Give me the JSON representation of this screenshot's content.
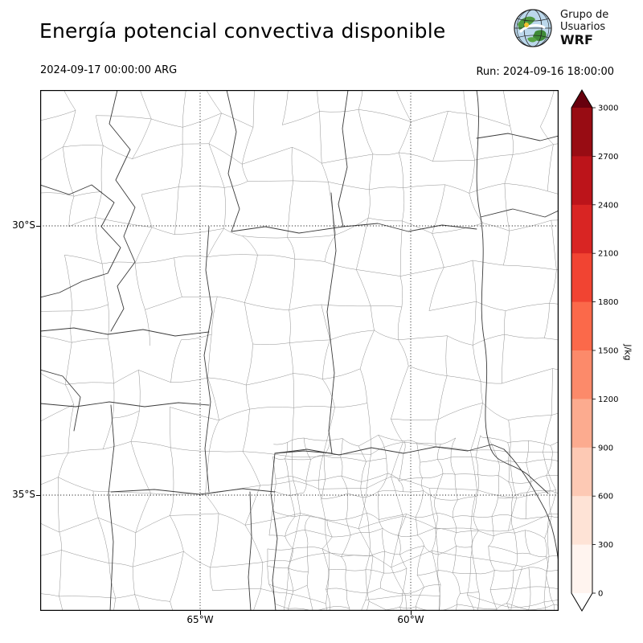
{
  "header": {
    "title": "Energía potencial convectiva disponible",
    "valid_time": "2024-09-17 00:00:00 ARG",
    "run_label": "Run: 2024-09-16 18:00:00"
  },
  "logo": {
    "line1": "Grupo de",
    "line2": "Usuarios",
    "line3": "WRF"
  },
  "axes": {
    "lat_tick_labels": [
      "30°S",
      "35°S"
    ],
    "lon_tick_labels": [
      "65°W",
      "60°W"
    ]
  },
  "colorbar": {
    "label": "J/kg",
    "tick_labels": [
      "3000",
      "2700",
      "2400",
      "2100",
      "1800",
      "1500",
      "1200",
      "900",
      "600",
      "300",
      "0"
    ],
    "segment_colors_top_to_bottom": [
      "#980c13",
      "#bc141a",
      "#d92523",
      "#f14432",
      "#fb694a",
      "#fc8a6a",
      "#fcab8f",
      "#fdc9b4",
      "#fee3d6",
      "#fff4ef"
    ],
    "over_color": "#67000d",
    "under_color": "#ffffff"
  },
  "chart_data": {
    "type": "heatmap",
    "title": "Energía potencial convectiva disponible",
    "valid_time": "2024-09-17 00:00:00 ARG",
    "run": "2024-09-16 18:00:00",
    "units": "J/kg",
    "levels": [
      0,
      300,
      600,
      900,
      1200,
      1500,
      1800,
      2100,
      2400,
      2700,
      3000
    ],
    "colormap": "Reds",
    "lat_ticks_deg_s": [
      30,
      35
    ],
    "lon_ticks_deg_w": [
      65,
      60
    ],
    "visible_field_values": "no shaded CAPE values visible; map area shows only administrative boundaries"
  }
}
